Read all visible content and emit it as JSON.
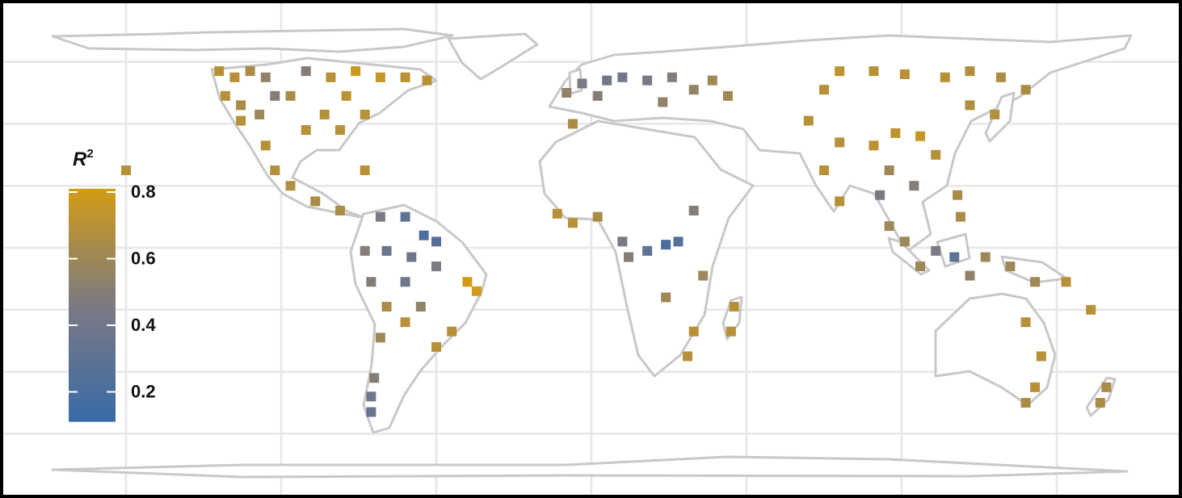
{
  "chart_data": {
    "type": "map",
    "legend": {
      "title": "R",
      "title_superscript": "2",
      "ticks": [
        0.2,
        0.4,
        0.6,
        0.8
      ]
    },
    "colorscale": {
      "low": "#3a6aa7",
      "mid": "#7b7a83",
      "high": "#d39c15",
      "limits": [
        0.11,
        0.81
      ],
      "midpoint": 0.46
    },
    "lon_grid": [
      -150,
      -100,
      -50,
      0,
      50,
      100,
      150
    ],
    "lat_grid": [
      60,
      40,
      20,
      0,
      -20,
      -40,
      -60
    ],
    "grid": true,
    "points": [
      [
        -120,
        57,
        0.7
      ],
      [
        -115,
        55,
        0.7
      ],
      [
        -110,
        57,
        0.65
      ],
      [
        -105,
        55,
        0.55
      ],
      [
        -118,
        49,
        0.7
      ],
      [
        -113,
        46,
        0.65
      ],
      [
        -107,
        43,
        0.6
      ],
      [
        -102,
        49,
        0.5
      ],
      [
        -113,
        41,
        0.7
      ],
      [
        -92,
        57,
        0.5
      ],
      [
        -84,
        55,
        0.7
      ],
      [
        -76,
        57,
        0.78
      ],
      [
        -68,
        55,
        0.75
      ],
      [
        -60,
        55,
        0.72
      ],
      [
        -53,
        54,
        0.7
      ],
      [
        -79,
        49,
        0.72
      ],
      [
        -73,
        43,
        0.7
      ],
      [
        -86,
        43,
        0.7
      ],
      [
        -92,
        38,
        0.7
      ],
      [
        -97,
        49,
        0.65
      ],
      [
        -81,
        38,
        0.7
      ],
      [
        -105,
        33,
        0.7
      ],
      [
        -102,
        25,
        0.68
      ],
      [
        -97,
        20,
        0.68
      ],
      [
        -89,
        15,
        0.65
      ],
      [
        -81,
        12,
        0.65
      ],
      [
        -73,
        25,
        0.7
      ],
      [
        -150,
        25,
        0.7
      ],
      [
        -68,
        10,
        0.45
      ],
      [
        -60,
        10,
        0.3
      ],
      [
        -54,
        4,
        0.2
      ],
      [
        -50,
        2,
        0.25
      ],
      [
        -73,
        -1,
        0.5
      ],
      [
        -66,
        -1,
        0.35
      ],
      [
        -58,
        -3,
        0.4
      ],
      [
        -50,
        -6,
        0.45
      ],
      [
        -71,
        -11,
        0.5
      ],
      [
        -60,
        -11,
        0.4
      ],
      [
        -40,
        -11,
        0.8
      ],
      [
        -37,
        -14,
        0.8
      ],
      [
        -66,
        -19,
        0.65
      ],
      [
        -55,
        -19,
        0.55
      ],
      [
        -60,
        -24,
        0.7
      ],
      [
        -45,
        -27,
        0.7
      ],
      [
        -50,
        -32,
        0.7
      ],
      [
        -68,
        -29,
        0.6
      ],
      [
        -71,
        -48,
        0.4
      ],
      [
        -71,
        -53,
        0.35
      ],
      [
        -70,
        -42,
        0.5
      ],
      [
        -11,
        11,
        0.7
      ],
      [
        -6,
        8,
        0.7
      ],
      [
        2,
        10,
        0.65
      ],
      [
        10,
        2,
        0.45
      ],
      [
        18,
        -1,
        0.3
      ],
      [
        24,
        1,
        0.2
      ],
      [
        28,
        2,
        0.25
      ],
      [
        12,
        -3,
        0.5
      ],
      [
        33,
        12,
        0.5
      ],
      [
        36,
        -9,
        0.6
      ],
      [
        24,
        -16,
        0.6
      ],
      [
        33,
        -27,
        0.7
      ],
      [
        46,
        -19,
        0.7
      ],
      [
        45,
        -27,
        0.7
      ],
      [
        31,
        -35,
        0.7
      ],
      [
        -6,
        40,
        0.65
      ],
      [
        -8,
        50,
        0.55
      ],
      [
        -3,
        53,
        0.45
      ],
      [
        5,
        54,
        0.4
      ],
      [
        10,
        55,
        0.4
      ],
      [
        18,
        54,
        0.45
      ],
      [
        26,
        55,
        0.5
      ],
      [
        33,
        51,
        0.55
      ],
      [
        39,
        54,
        0.6
      ],
      [
        44,
        49,
        0.6
      ],
      [
        2,
        49,
        0.5
      ],
      [
        23,
        47,
        0.55
      ],
      [
        80,
        57,
        0.72
      ],
      [
        91,
        57,
        0.7
      ],
      [
        101,
        56,
        0.7
      ],
      [
        114,
        55,
        0.7
      ],
      [
        122,
        57,
        0.68
      ],
      [
        132,
        55,
        0.66
      ],
      [
        140,
        51,
        0.66
      ],
      [
        122,
        46,
        0.68
      ],
      [
        130,
        43,
        0.68
      ],
      [
        75,
        51,
        0.7
      ],
      [
        70,
        41,
        0.7
      ],
      [
        80,
        34,
        0.7
      ],
      [
        91,
        33,
        0.72
      ],
      [
        98,
        37,
        0.72
      ],
      [
        106,
        36,
        0.75
      ],
      [
        111,
        30,
        0.7
      ],
      [
        96,
        25,
        0.6
      ],
      [
        104,
        20,
        0.5
      ],
      [
        93,
        17,
        0.45
      ],
      [
        75,
        25,
        0.7
      ],
      [
        80,
        15,
        0.7
      ],
      [
        118,
        17,
        0.65
      ],
      [
        119,
        10,
        0.65
      ],
      [
        96,
        7,
        0.6
      ],
      [
        101,
        2,
        0.6
      ],
      [
        106,
        -6,
        0.6
      ],
      [
        111,
        -1,
        0.45
      ],
      [
        117,
        -3,
        0.3
      ],
      [
        122,
        -9,
        0.55
      ],
      [
        127,
        -3,
        0.6
      ],
      [
        135,
        -6,
        0.6
      ],
      [
        143,
        -11,
        0.6
      ],
      [
        153,
        -11,
        0.7
      ],
      [
        161,
        -20,
        0.7
      ],
      [
        140,
        -24,
        0.7
      ],
      [
        145,
        -35,
        0.7
      ],
      [
        143,
        -45,
        0.7
      ],
      [
        140,
        -50,
        0.65
      ],
      [
        166,
        -45,
        0.65
      ],
      [
        164,
        -50,
        0.65
      ]
    ]
  }
}
